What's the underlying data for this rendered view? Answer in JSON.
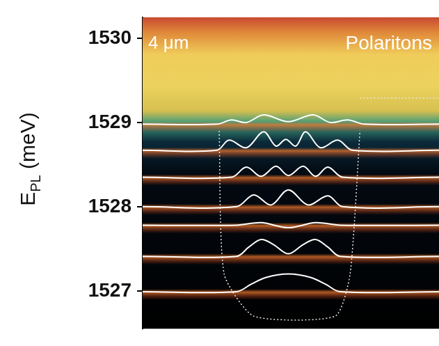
{
  "chart_data": {
    "type": "line",
    "annotations": [
      "4 μm",
      "Polaritons"
    ],
    "ylabel": {
      "text": "E",
      "subscript": "PL",
      "unit": "(meV)"
    },
    "xlim": [
      0,
      12
    ],
    "ylim": [
      1526.55,
      1530.25
    ],
    "yticks": [
      1527,
      1528,
      1529,
      1530
    ],
    "tick_labels": "y",
    "grid": false,
    "legend": false,
    "series": [
      {
        "color": "#ffffff",
        "line_style": "solid",
        "x": [
          0,
          3.8,
          4.4,
          5.0,
          5.9,
          6.8,
          7.4,
          8.0,
          12
        ],
        "values": [
          1526.99,
          1526.99,
          1527.08,
          1527.16,
          1527.2,
          1527.16,
          1527.08,
          1526.99,
          1526.99
        ]
      },
      {
        "color": "#ffffff",
        "line_style": "solid",
        "x": [
          0,
          3.8,
          4.3,
          4.8,
          5.3,
          5.9,
          6.5,
          7.0,
          7.5,
          8.0,
          12
        ],
        "values": [
          1527.41,
          1527.41,
          1527.52,
          1527.61,
          1527.55,
          1527.44,
          1527.55,
          1527.61,
          1527.52,
          1527.41,
          1527.41
        ]
      },
      {
        "color": "#ffffff",
        "line_style": "solid",
        "x": [
          0,
          3.8,
          4.8,
          5.9,
          7.0,
          8.0,
          12
        ],
        "values": [
          1527.78,
          1527.78,
          1527.81,
          1527.75,
          1527.81,
          1527.78,
          1527.78
        ]
      },
      {
        "color": "#ffffff",
        "line_style": "solid",
        "x": [
          0,
          3.8,
          4.5,
          5.2,
          5.9,
          6.7,
          7.5,
          8.1,
          12
        ],
        "values": [
          1528.0,
          1528.0,
          1528.14,
          1528.02,
          1528.2,
          1528.02,
          1528.13,
          1528.0,
          1528.0
        ]
      },
      {
        "color": "#ffffff",
        "line_style": "solid",
        "x": [
          0,
          3.6,
          4.2,
          4.8,
          5.4,
          5.9,
          6.5,
          7.0,
          7.5,
          8.1,
          12
        ],
        "values": [
          1528.35,
          1528.35,
          1528.47,
          1528.36,
          1528.48,
          1528.37,
          1528.48,
          1528.36,
          1528.47,
          1528.35,
          1528.35
        ]
      },
      {
        "color": "#ffffff",
        "line_style": "solid",
        "x": [
          0,
          3.0,
          3.5,
          4.2,
          4.9,
          5.4,
          5.8,
          6.2,
          6.6,
          7.2,
          7.9,
          8.5,
          12
        ],
        "values": [
          1528.67,
          1528.67,
          1528.79,
          1528.7,
          1528.89,
          1528.72,
          1528.8,
          1528.72,
          1528.89,
          1528.7,
          1528.79,
          1528.67,
          1528.67
        ]
      },
      {
        "color": "#ffffff",
        "line_style": "solid",
        "x": [
          0,
          3.0,
          3.6,
          4.2,
          4.9,
          5.9,
          6.9,
          7.6,
          8.3,
          9.0,
          12
        ],
        "values": [
          1528.98,
          1528.98,
          1529.03,
          1529.0,
          1529.09,
          1529.01,
          1529.09,
          1529.0,
          1529.03,
          1528.98,
          1528.98
        ]
      },
      {
        "color": "#e8e8e8",
        "line_style": "dotted",
        "x": [
          3.1,
          3.3,
          4.5,
          7.8,
          8.4,
          8.8
        ],
        "values": [
          1528.9,
          1527.2,
          1526.7,
          1526.7,
          1527.2,
          1528.9
        ]
      },
      {
        "color": "#e8e8e8",
        "line_style": "dotted",
        "x": [
          8.8,
          12
        ],
        "values": [
          1529.29,
          1529.29
        ]
      }
    ]
  }
}
